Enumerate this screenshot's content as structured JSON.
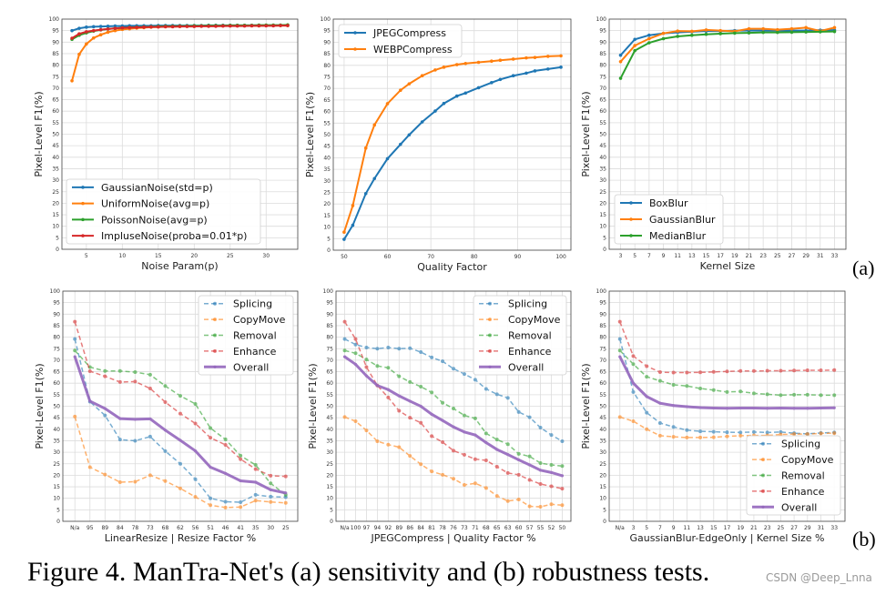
{
  "caption": "Figure 4. ManTra-Net's (a) sensitivity and (b) robustness tests.",
  "panel_labels": {
    "a": "(a)",
    "b": "(b)"
  },
  "watermark": "CSDN @Deep_Lnna",
  "chart_data": [
    {
      "type": "line",
      "x_scale": "numeric",
      "xlabel": "Noise Param(p)",
      "ylabel": "Pixel-Level F1(%)",
      "ylim": [
        0,
        100
      ],
      "xlim": [
        1.6,
        34.4
      ],
      "grid": true,
      "legend": "lower-left",
      "x": [
        3,
        4,
        5,
        6,
        7,
        8,
        9,
        10,
        11,
        12,
        13,
        14,
        15,
        16,
        17,
        18,
        19,
        20,
        21,
        22,
        23,
        24,
        25,
        26,
        27,
        28,
        29,
        30,
        31,
        32,
        33
      ],
      "x_ticks": [
        "5",
        "10",
        "15",
        "20",
        "25",
        "30"
      ],
      "x_tick_values": [
        5,
        10,
        15,
        20,
        25,
        30
      ],
      "y_ticks": [
        "0",
        "5",
        "10",
        "15",
        "20",
        "25",
        "30",
        "35",
        "40",
        "45",
        "50",
        "55",
        "60",
        "65",
        "70",
        "75",
        "80",
        "85",
        "90",
        "95",
        "100"
      ],
      "series": [
        {
          "name": "GaussianNoise(std=p)",
          "color": "#1f77b4",
          "style": "solid",
          "values": [
            95,
            96,
            96.5,
            96.7,
            96.8,
            96.9,
            97,
            97,
            97.1,
            97.1,
            97.1,
            97.1,
            97.2,
            97.2,
            97.2,
            97.2,
            97.2,
            97.2,
            97.2,
            97.3,
            97.3,
            97.3,
            97.3,
            97.3,
            97.3,
            97.3,
            97.3,
            97.3,
            97.3,
            97.3,
            97.3
          ]
        },
        {
          "name": "UniformNoise(avg=p)",
          "color": "#ff7f0e",
          "style": "solid",
          "values": [
            73.2,
            84.7,
            89.2,
            91.8,
            93.2,
            94.3,
            95,
            95.5,
            95.8,
            96.1,
            96.3,
            96.5,
            96.6,
            96.7,
            96.8,
            96.8,
            96.9,
            96.9,
            97,
            97,
            97,
            97,
            97.1,
            97.1,
            97.1,
            97.1,
            97.1,
            97.2,
            97.2,
            97.2,
            97.2
          ]
        },
        {
          "name": "PoissonNoise(avg=p)",
          "color": "#2ca02c",
          "style": "solid",
          "values": [
            91.2,
            93,
            94,
            94.8,
            95.3,
            95.7,
            96,
            96.2,
            96.4,
            96.5,
            96.6,
            96.7,
            96.8,
            96.9,
            96.9,
            97,
            97,
            97.1,
            97.1,
            97.2,
            97.2,
            97.2,
            97.3,
            97.3,
            97.3,
            97.3,
            97.4,
            97.4,
            97.4,
            97.4,
            97.5
          ]
        },
        {
          "name": "ImpluseNoise(proba=0.01*p)",
          "color": "#d62728",
          "style": "solid",
          "values": [
            91.7,
            93.6,
            94.5,
            95,
            95.4,
            95.7,
            96,
            96.2,
            96.3,
            96.4,
            96.5,
            96.6,
            96.6,
            96.7,
            96.7,
            96.8,
            96.8,
            96.8,
            96.9,
            96.9,
            96.9,
            97,
            97,
            97,
            97,
            97.1,
            97.1,
            97.1,
            97.1,
            97.2,
            97.2
          ]
        }
      ]
    },
    {
      "type": "line",
      "x_scale": "numeric",
      "xlabel": "Quality Factor",
      "ylabel": "Pixel-Level F1(%)",
      "ylim": [
        0,
        100
      ],
      "xlim": [
        47.5,
        102.3
      ],
      "grid": true,
      "legend": "upper-left",
      "x": [
        50,
        52,
        55,
        57,
        60,
        63,
        65,
        68,
        71,
        73,
        76,
        78,
        81,
        84,
        86,
        89,
        92,
        94,
        97,
        100
      ],
      "x_ticks": [
        "50",
        "60",
        "70",
        "80",
        "90",
        "100"
      ],
      "x_tick_values": [
        50,
        60,
        70,
        80,
        90,
        100
      ],
      "y_ticks": [
        "0",
        "5",
        "10",
        "15",
        "20",
        "25",
        "30",
        "35",
        "40",
        "45",
        "50",
        "55",
        "60",
        "65",
        "70",
        "75",
        "80",
        "85",
        "90",
        "95",
        "100"
      ],
      "series": [
        {
          "name": "JPEGCompress",
          "color": "#1f77b4",
          "style": "solid",
          "values": [
            4.7,
            10.8,
            24.5,
            31,
            39.6,
            45.8,
            49.9,
            55.5,
            60.2,
            63.5,
            66.7,
            68,
            70.3,
            72.5,
            73.9,
            75.5,
            76.6,
            77.6,
            78.4,
            79.2
          ]
        },
        {
          "name": "WEBPCompress",
          "color": "#ff7f0e",
          "style": "solid",
          "values": [
            7.8,
            19.3,
            44.2,
            54.2,
            63.4,
            69.2,
            72,
            75.5,
            78,
            79.2,
            80.3,
            80.8,
            81.3,
            81.8,
            82.2,
            82.7,
            83.2,
            83.4,
            83.9,
            84.1
          ]
        }
      ]
    },
    {
      "type": "line",
      "x_scale": "categorical",
      "xlabel": "Kernel Size",
      "ylabel": "Pixel-Level F1(%)",
      "ylim": [
        0,
        100
      ],
      "grid": true,
      "legend": "lower-left",
      "categories": [
        "3",
        "5",
        "7",
        "9",
        "11",
        "13",
        "15",
        "17",
        "19",
        "21",
        "23",
        "25",
        "27",
        "29",
        "31",
        "33"
      ],
      "y_ticks": [
        "0",
        "5",
        "10",
        "15",
        "20",
        "25",
        "30",
        "35",
        "40",
        "45",
        "50",
        "55",
        "60",
        "65",
        "70",
        "75",
        "80",
        "85",
        "90",
        "95",
        "100"
      ],
      "series": [
        {
          "name": "BoxBlur",
          "color": "#1f77b4",
          "style": "solid",
          "values": [
            84.3,
            91.2,
            93,
            93.8,
            94.2,
            94.5,
            94.8,
            94.8,
            95,
            95,
            95,
            95,
            95,
            95,
            95.2,
            95.2
          ]
        },
        {
          "name": "GaussianBlur",
          "color": "#ff7f0e",
          "style": "solid",
          "values": [
            81.5,
            88.5,
            91.5,
            93.8,
            94.8,
            94.7,
            95.3,
            95,
            94.7,
            95.8,
            95.8,
            95.4,
            95.8,
            96.3,
            94.8,
            96.3
          ]
        },
        {
          "name": "MedianBlur",
          "color": "#2ca02c",
          "style": "solid",
          "values": [
            74.3,
            86.3,
            89.7,
            91.5,
            92.5,
            93,
            93.4,
            93.7,
            93.9,
            94,
            94.2,
            94.2,
            94.3,
            94.4,
            94.5,
            94.6
          ]
        }
      ]
    },
    {
      "type": "line",
      "x_scale": "categorical",
      "xlabel": "LinearResize | Resize Factor %",
      "ylabel": "Pixel-Level F1(%)",
      "ylim": [
        0,
        100
      ],
      "grid": true,
      "legend": "upper-right",
      "categories": [
        "N/a",
        "95",
        "89",
        "84",
        "78",
        "73",
        "68",
        "62",
        "56",
        "51",
        "46",
        "41",
        "35",
        "30",
        "25"
      ],
      "y_ticks": [
        "0",
        "5",
        "10",
        "15",
        "20",
        "25",
        "30",
        "35",
        "40",
        "45",
        "50",
        "55",
        "60",
        "65",
        "70",
        "75",
        "80",
        "85",
        "90",
        "95",
        "100"
      ],
      "series": [
        {
          "name": "Splicing",
          "color": "#1f77b4",
          "style": "dashed",
          "values": [
            79.2,
            52,
            46,
            35.5,
            35,
            36.8,
            30.5,
            25,
            18.3,
            10,
            8.5,
            8.3,
            11.5,
            10.7,
            10.5
          ]
        },
        {
          "name": "CopyMove",
          "color": "#ff7f0e",
          "style": "dashed",
          "values": [
            45.5,
            23.5,
            20.3,
            17,
            17.2,
            20,
            17.5,
            14.3,
            10.6,
            7,
            6,
            6.2,
            9,
            8.4,
            8
          ]
        },
        {
          "name": "Removal",
          "color": "#2ca02c",
          "style": "dashed",
          "values": [
            74.2,
            67,
            65.3,
            65.3,
            64.8,
            63.7,
            58.8,
            54.5,
            51,
            40.5,
            35.6,
            28.5,
            24.5,
            16.5,
            11.5
          ]
        },
        {
          "name": "Enhance",
          "color": "#d62728",
          "style": "dashed",
          "values": [
            86.7,
            65.2,
            63,
            60.5,
            60.7,
            57.7,
            51.8,
            46.8,
            42.5,
            36.3,
            33.2,
            27,
            22.7,
            19.8,
            19.5
          ]
        },
        {
          "name": "Overall",
          "color": "#9467bd",
          "style": "bold",
          "values": [
            71.5,
            52.2,
            49,
            44.6,
            44.3,
            44.5,
            39.6,
            35.2,
            30.6,
            23.5,
            20.8,
            17.6,
            17,
            13.7,
            12.3
          ]
        }
      ]
    },
    {
      "type": "line",
      "x_scale": "categorical",
      "xlabel": "JPEGCompress | Quality Factor %",
      "ylabel": "Pixel-Level F1(%)",
      "ylim": [
        0,
        100
      ],
      "grid": true,
      "legend": "upper-right",
      "categories": [
        "N/a",
        "100",
        "97",
        "94",
        "92",
        "89",
        "86",
        "84",
        "81",
        "78",
        "76",
        "73",
        "71",
        "68",
        "65",
        "63",
        "60",
        "57",
        "55",
        "52",
        "50"
      ],
      "y_ticks": [
        "0",
        "5",
        "10",
        "15",
        "20",
        "25",
        "30",
        "35",
        "40",
        "45",
        "50",
        "55",
        "60",
        "65",
        "70",
        "75",
        "80",
        "85",
        "90",
        "95",
        "100"
      ],
      "series": [
        {
          "name": "Splicing",
          "color": "#1f77b4",
          "style": "dashed",
          "values": [
            79.2,
            76.8,
            75.5,
            75,
            75.5,
            75,
            75.2,
            73.5,
            71.2,
            69.5,
            66.3,
            64,
            61.5,
            57.5,
            55.2,
            53.6,
            47.5,
            45.2,
            40.7,
            37.5,
            34.8
          ]
        },
        {
          "name": "CopyMove",
          "color": "#ff7f0e",
          "style": "dashed",
          "values": [
            45.3,
            43.5,
            39.5,
            34.8,
            33.3,
            32.2,
            28.4,
            24.8,
            21.7,
            20.2,
            18.5,
            15.8,
            16.5,
            14.5,
            11,
            8.8,
            9.5,
            6.5,
            6.3,
            7.4,
            7
          ]
        },
        {
          "name": "Removal",
          "color": "#2ca02c",
          "style": "dashed",
          "values": [
            74.2,
            73,
            70.3,
            67.5,
            66.7,
            63,
            60.5,
            58.5,
            56,
            51.5,
            49,
            46,
            44.7,
            38.2,
            35.5,
            33.5,
            29.3,
            28.2,
            25.3,
            24.5,
            24
          ]
        },
        {
          "name": "Enhance",
          "color": "#d62728",
          "style": "dashed",
          "values": [
            86.7,
            79.2,
            67,
            59,
            53.8,
            48,
            45,
            42.8,
            37,
            34.4,
            30.7,
            28.9,
            27,
            26.5,
            23.7,
            21,
            20.2,
            18,
            16.2,
            15.2,
            14.2
          ]
        },
        {
          "name": "Overall",
          "color": "#9467bd",
          "style": "bold",
          "values": [
            71.5,
            68.2,
            63.2,
            59,
            57.2,
            54.5,
            52.2,
            50,
            46.5,
            43.8,
            41,
            38.8,
            37.5,
            34.2,
            31.2,
            29,
            26.7,
            24.5,
            22.2,
            21.2,
            19.8
          ]
        }
      ]
    },
    {
      "type": "line",
      "x_scale": "categorical",
      "xlabel": "GaussianBlur-EdgeOnly | Kernel Size %",
      "ylabel": "Pixel-Level F1(%)",
      "ylim": [
        0,
        100
      ],
      "grid": true,
      "legend": "lower-right",
      "categories": [
        "N/a",
        "3",
        "5",
        "7",
        "9",
        "11",
        "13",
        "15",
        "17",
        "19",
        "21",
        "23",
        "25",
        "27",
        "29",
        "31",
        "33"
      ],
      "y_ticks": [
        "0",
        "5",
        "10",
        "15",
        "20",
        "25",
        "30",
        "35",
        "40",
        "45",
        "50",
        "55",
        "60",
        "65",
        "70",
        "75",
        "80",
        "85",
        "90",
        "95",
        "100"
      ],
      "series": [
        {
          "name": "Splicing",
          "color": "#1f77b4",
          "style": "dashed",
          "values": [
            79.2,
            56.2,
            47.2,
            42.7,
            41,
            39.6,
            39.1,
            38.9,
            38.7,
            38.6,
            38.8,
            38.6,
            38.8,
            38.3,
            38,
            38.4,
            38.6
          ]
        },
        {
          "name": "CopyMove",
          "color": "#ff7f0e",
          "style": "dashed",
          "values": [
            45.3,
            43.5,
            40,
            37.2,
            36.7,
            36.4,
            36.4,
            36.5,
            36.9,
            37.2,
            37.3,
            37.3,
            37.7,
            37.9,
            37.9,
            38.2,
            38.3
          ]
        },
        {
          "name": "Removal",
          "color": "#2ca02c",
          "style": "dashed",
          "values": [
            74.2,
            68.3,
            62.8,
            61,
            59.3,
            58.8,
            57.7,
            57,
            56.2,
            56.4,
            55.6,
            55.2,
            54.8,
            55,
            55,
            54.8,
            54.8
          ]
        },
        {
          "name": "Enhance",
          "color": "#d62728",
          "style": "dashed",
          "values": [
            86.7,
            71.8,
            67.4,
            64.8,
            64.6,
            64.6,
            64.7,
            64.9,
            65.1,
            65.3,
            65.3,
            65.4,
            65.4,
            65.5,
            65.6,
            65.6,
            65.7
          ]
        },
        {
          "name": "Overall",
          "color": "#9467bd",
          "style": "bold",
          "values": [
            71.5,
            60,
            54.2,
            51.3,
            50.3,
            49.8,
            49.4,
            49.2,
            49.1,
            49.2,
            49.2,
            49.1,
            49.2,
            49.1,
            49.1,
            49.2,
            49.3
          ]
        }
      ]
    }
  ]
}
